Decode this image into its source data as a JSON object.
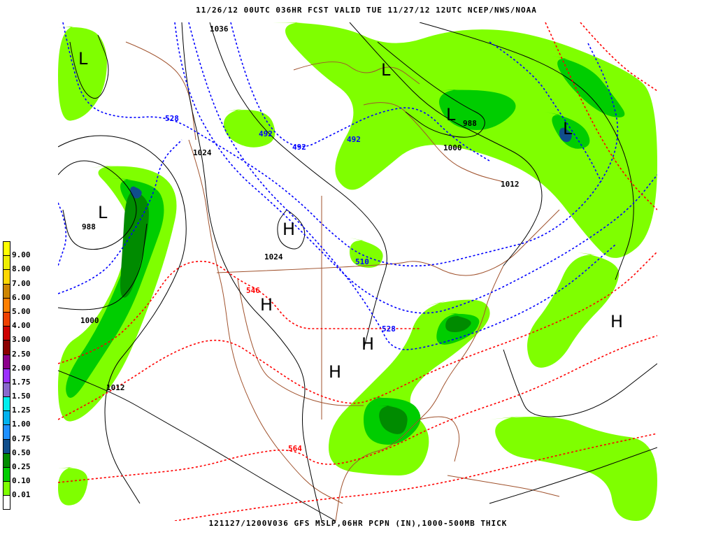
{
  "header": {
    "title": "11/26/12 00UTC   036HR  FCST VALID TUE 11/27/12 12UTC  NCEP/NWS/NOAA",
    "footer": "121127/1200V036 GFS MSLP,06HR PCPN (IN),1000-500MB THICK"
  },
  "legend": {
    "items": [
      {
        "label": "9.00",
        "color": "#ffff00"
      },
      {
        "label": "8.00",
        "color": "#eeee00"
      },
      {
        "label": "7.00",
        "color": "#ffd700"
      },
      {
        "label": "6.00",
        "color": "#cd8500"
      },
      {
        "label": "5.00",
        "color": "#ff7f00"
      },
      {
        "label": "4.00",
        "color": "#ee4000"
      },
      {
        "label": "3.00",
        "color": "#cd0000"
      },
      {
        "label": "2.50",
        "color": "#8b0000"
      },
      {
        "label": "2.00",
        "color": "#8b008b"
      },
      {
        "label": "1.75",
        "color": "#9b30ff"
      },
      {
        "label": "1.50",
        "color": "#8968cd"
      },
      {
        "label": "1.25",
        "color": "#00eeee"
      },
      {
        "label": "1.00",
        "color": "#00b2ee"
      },
      {
        "label": "0.75",
        "color": "#1e90ff"
      },
      {
        "label": "0.50",
        "color": "#104e8b"
      },
      {
        "label": "0.25",
        "color": "#008b00"
      },
      {
        "label": "0.10",
        "color": "#00cd00"
      },
      {
        "label": "0.01",
        "color": "#7fff00"
      },
      {
        "label": "",
        "color": "#ffffff"
      }
    ]
  },
  "map": {
    "colors": {
      "isobar": "#000000",
      "thickness_cold": "#0000ff",
      "thickness_warm": "#ff0000",
      "coast": "#a0522d"
    },
    "isobar_labels": [
      "1036",
      "1024",
      "988",
      "1000",
      "1012",
      "988",
      "1000",
      "1012",
      "1024"
    ],
    "thickness_labels": [
      {
        "text": "528",
        "kind": "cold"
      },
      {
        "text": "492",
        "kind": "cold"
      },
      {
        "text": "492",
        "kind": "cold"
      },
      {
        "text": "492",
        "kind": "cold"
      },
      {
        "text": "510",
        "kind": "cold"
      },
      {
        "text": "528",
        "kind": "cold"
      },
      {
        "text": "546",
        "kind": "warm"
      },
      {
        "text": "564",
        "kind": "warm"
      }
    ],
    "pressure_centers": [
      "L",
      "L",
      "L",
      "L",
      "L",
      "H",
      "H",
      "H",
      "H",
      "H"
    ]
  }
}
